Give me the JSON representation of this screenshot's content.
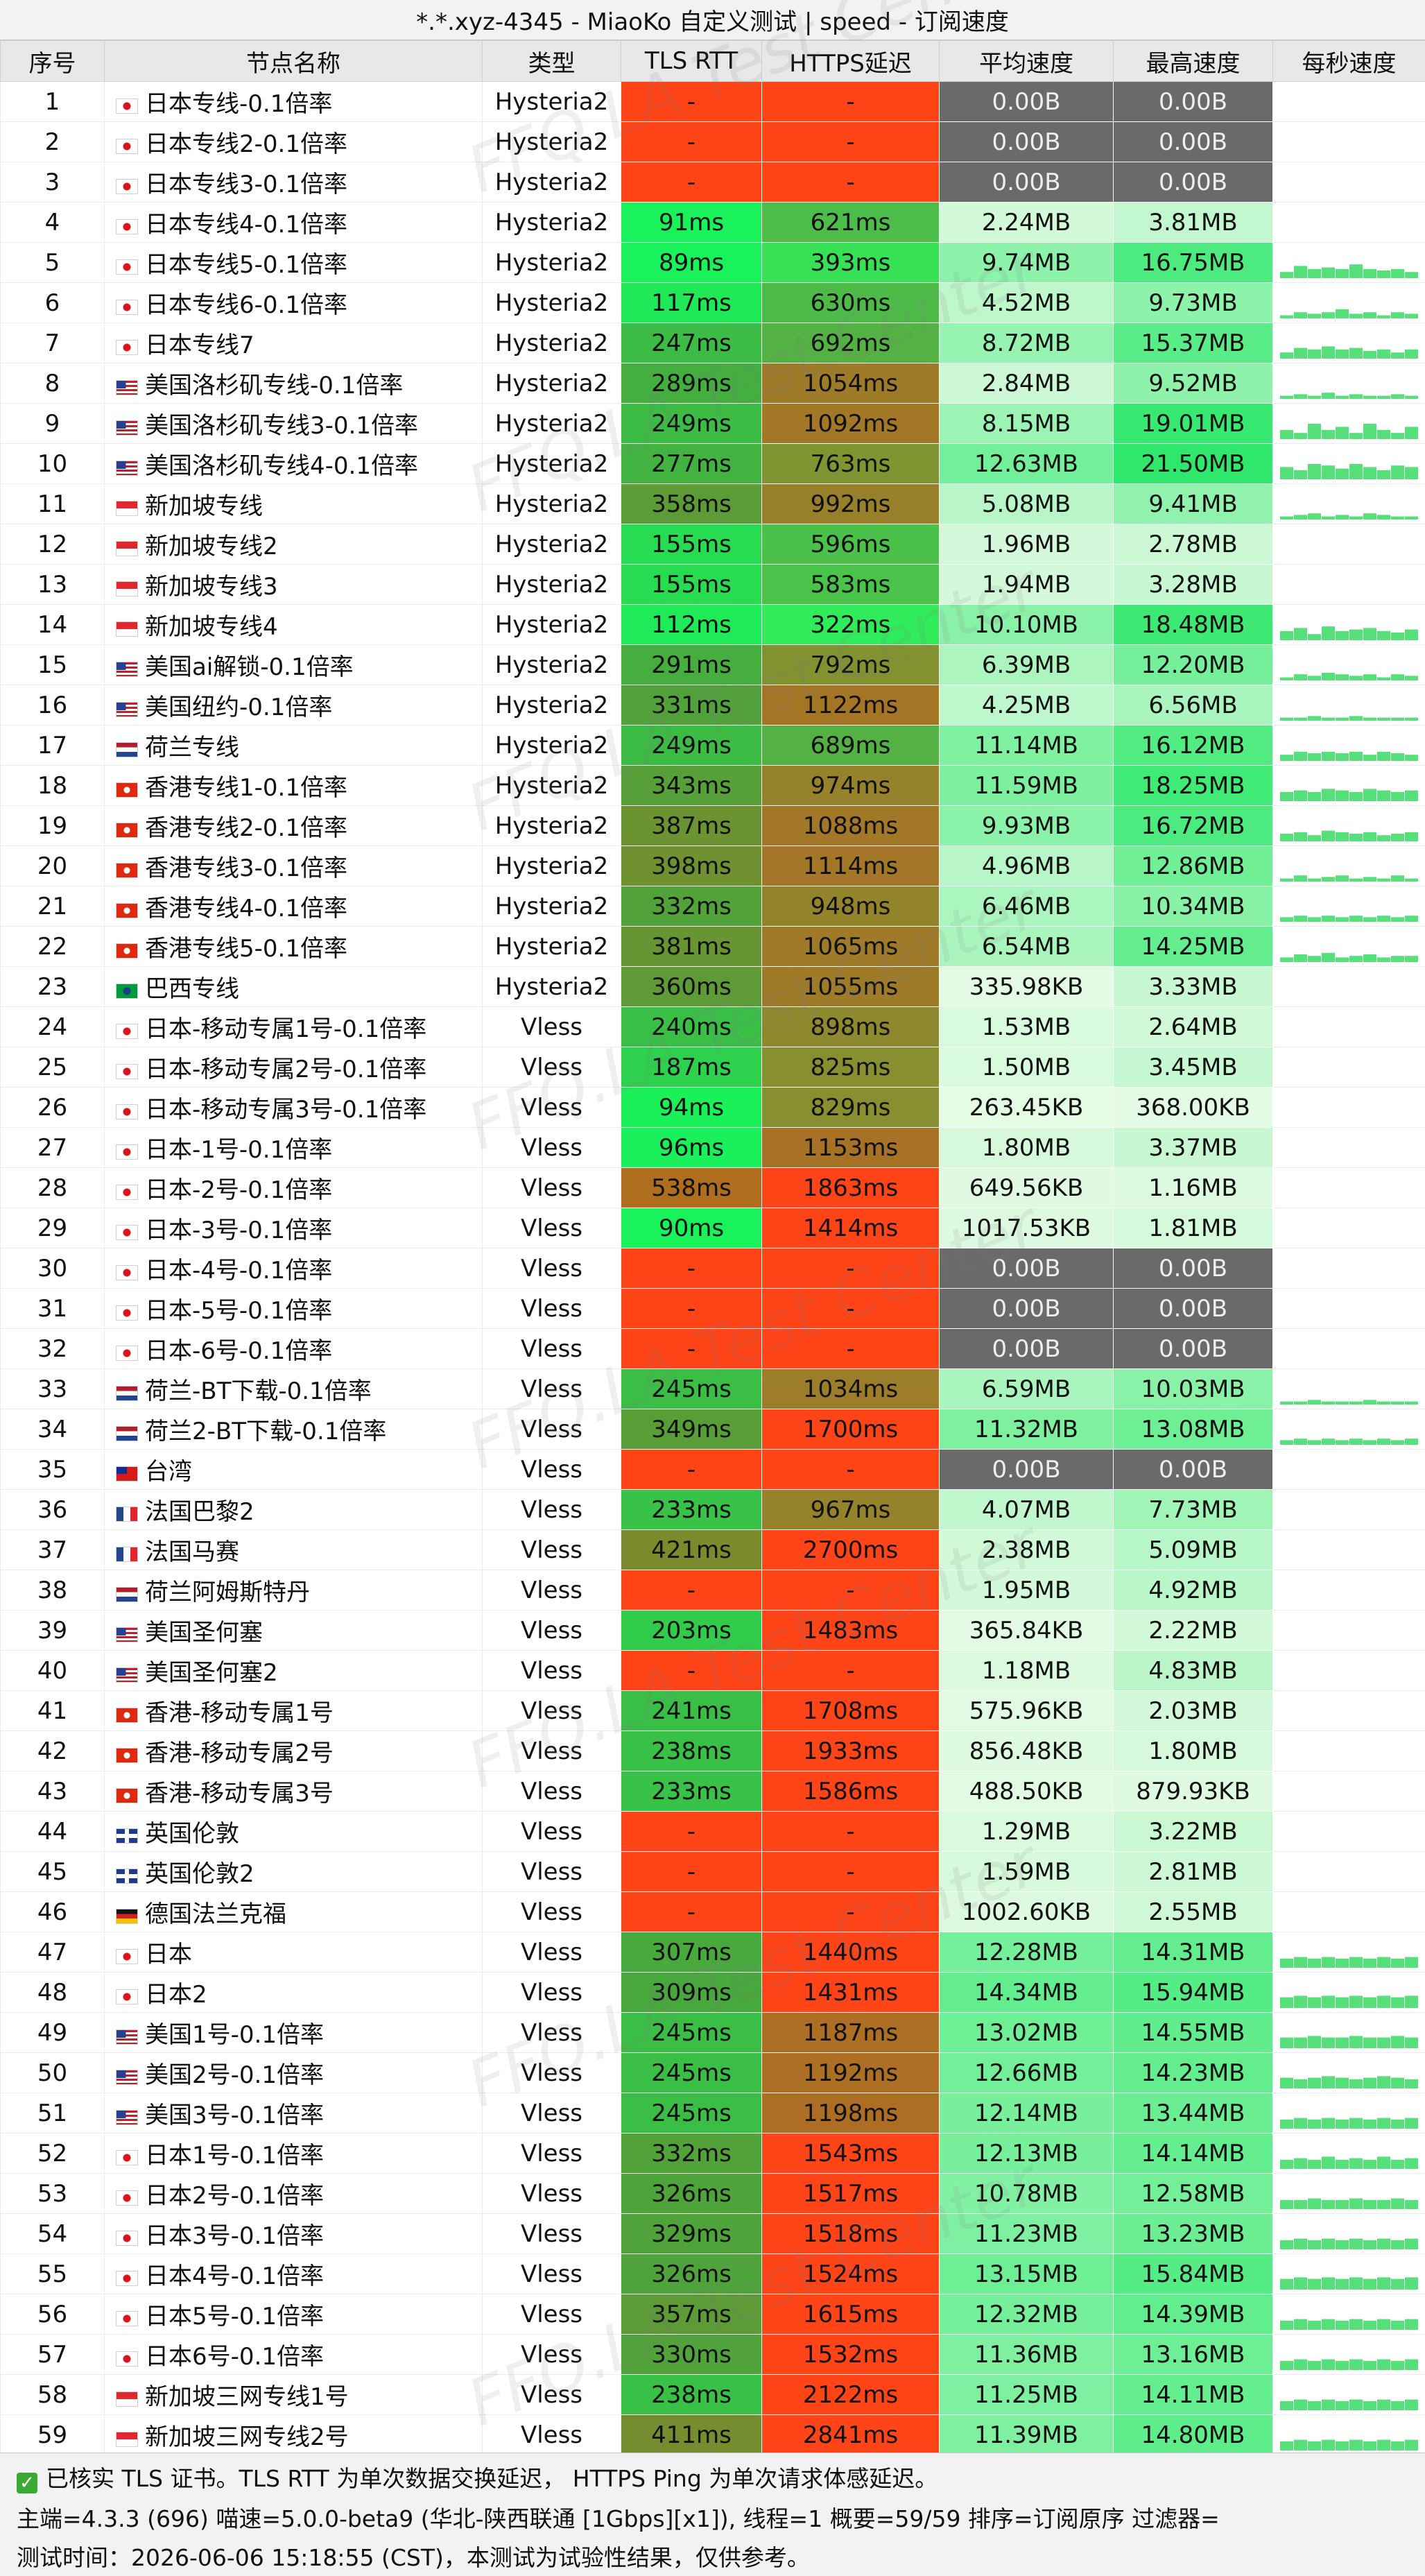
{
  "title": "*.*.xyz-4345 - MiaoKo 自定义测试 | speed - 订阅速度",
  "columns": [
    "序号",
    "节点名称",
    "类型",
    "TLS RTT",
    "HTTPS延迟",
    "平均速度",
    "最高速度",
    "每秒速度"
  ],
  "watermark_text": "FFQ.LA Test Center",
  "rows": [
    {
      "id": "1",
      "flag": "jp",
      "name": "日本专线-0.1倍率",
      "type": "Hysteria2",
      "tls": "-",
      "https": "-",
      "avg": "0.00B",
      "max": "0.00B",
      "spark": []
    },
    {
      "id": "2",
      "flag": "jp",
      "name": "日本专线2-0.1倍率",
      "type": "Hysteria2",
      "tls": "-",
      "https": "-",
      "avg": "0.00B",
      "max": "0.00B",
      "spark": []
    },
    {
      "id": "3",
      "flag": "jp",
      "name": "日本专线3-0.1倍率",
      "type": "Hysteria2",
      "tls": "-",
      "https": "-",
      "avg": "0.00B",
      "max": "0.00B",
      "spark": []
    },
    {
      "id": "4",
      "flag": "jp",
      "name": "日本专线4-0.1倍率",
      "type": "Hysteria2",
      "tls": "91ms",
      "https": "621ms",
      "avg": "2.24MB",
      "max": "3.81MB",
      "spark": []
    },
    {
      "id": "5",
      "flag": "jp",
      "name": "日本专线5-0.1倍率",
      "type": "Hysteria2",
      "tls": "89ms",
      "https": "393ms",
      "avg": "9.74MB",
      "max": "16.75MB",
      "spark": [
        0.2,
        0.4,
        0.3,
        0.35,
        0.3,
        0.45,
        0.3,
        0.25,
        0.3,
        0.2
      ]
    },
    {
      "id": "6",
      "flag": "jp",
      "name": "日本专线6-0.1倍率",
      "type": "Hysteria2",
      "tls": "117ms",
      "https": "630ms",
      "avg": "4.52MB",
      "max": "9.73MB",
      "spark": [
        0.1,
        0.2,
        0.15,
        0.2,
        0.3,
        0.15,
        0.2,
        0.1,
        0.2,
        0.15
      ]
    },
    {
      "id": "7",
      "flag": "jp",
      "name": "日本专线7",
      "type": "Hysteria2",
      "tls": "247ms",
      "https": "692ms",
      "avg": "8.72MB",
      "max": "15.37MB",
      "spark": [
        0.2,
        0.35,
        0.3,
        0.4,
        0.3,
        0.35,
        0.25,
        0.3,
        0.2,
        0.3
      ]
    },
    {
      "id": "8",
      "flag": "us",
      "name": "美国洛杉矶专线-0.1倍率",
      "type": "Hysteria2",
      "tls": "289ms",
      "https": "1054ms",
      "avg": "2.84MB",
      "max": "9.52MB",
      "spark": [
        0.1,
        0.15,
        0.1,
        0.2,
        0.1,
        0.15,
        0.1,
        0.1,
        0.15,
        0.1
      ]
    },
    {
      "id": "9",
      "flag": "us",
      "name": "美国洛杉矶专线3-0.1倍率",
      "type": "Hysteria2",
      "tls": "249ms",
      "https": "1092ms",
      "avg": "8.15MB",
      "max": "19.01MB",
      "spark": [
        0.3,
        0.2,
        0.5,
        0.3,
        0.4,
        0.2,
        0.5,
        0.3,
        0.2,
        0.4
      ]
    },
    {
      "id": "10",
      "flag": "us",
      "name": "美国洛杉矶专线4-0.1倍率",
      "type": "Hysteria2",
      "tls": "277ms",
      "https": "763ms",
      "avg": "12.63MB",
      "max": "21.50MB",
      "spark": [
        0.4,
        0.3,
        0.5,
        0.45,
        0.35,
        0.5,
        0.4,
        0.3,
        0.45,
        0.4
      ]
    },
    {
      "id": "11",
      "flag": "sg",
      "name": "新加坡专线",
      "type": "Hysteria2",
      "tls": "358ms",
      "https": "992ms",
      "avg": "5.08MB",
      "max": "9.41MB",
      "spark": [
        0.1,
        0.15,
        0.2,
        0.1,
        0.15,
        0.1,
        0.2,
        0.15,
        0.1,
        0.1
      ]
    },
    {
      "id": "12",
      "flag": "sg",
      "name": "新加坡专线2",
      "type": "Hysteria2",
      "tls": "155ms",
      "https": "596ms",
      "avg": "1.96MB",
      "max": "2.78MB",
      "spark": []
    },
    {
      "id": "13",
      "flag": "sg",
      "name": "新加坡专线3",
      "type": "Hysteria2",
      "tls": "155ms",
      "https": "583ms",
      "avg": "1.94MB",
      "max": "3.28MB",
      "spark": []
    },
    {
      "id": "14",
      "flag": "sg",
      "name": "新加坡专线4",
      "type": "Hysteria2",
      "tls": "112ms",
      "https": "322ms",
      "avg": "10.10MB",
      "max": "18.48MB",
      "spark": [
        0.3,
        0.4,
        0.2,
        0.45,
        0.3,
        0.35,
        0.4,
        0.3,
        0.25,
        0.35
      ]
    },
    {
      "id": "15",
      "flag": "us",
      "name": "美国ai解锁-0.1倍率",
      "type": "Hysteria2",
      "tls": "291ms",
      "https": "792ms",
      "avg": "6.39MB",
      "max": "12.20MB",
      "spark": [
        0.1,
        0.2,
        0.15,
        0.25,
        0.2,
        0.15,
        0.2,
        0.1,
        0.2,
        0.15
      ]
    },
    {
      "id": "16",
      "flag": "us",
      "name": "美国纽约-0.1倍率",
      "type": "Hysteria2",
      "tls": "331ms",
      "https": "1122ms",
      "avg": "4.25MB",
      "max": "6.56MB",
      "spark": [
        0.1,
        0.1,
        0.15,
        0.1,
        0.1,
        0.15,
        0.1,
        0.1,
        0.1,
        0.1
      ]
    },
    {
      "id": "17",
      "flag": "nl",
      "name": "荷兰专线",
      "type": "Hysteria2",
      "tls": "249ms",
      "https": "689ms",
      "avg": "11.14MB",
      "max": "16.12MB",
      "spark": [
        0.2,
        0.3,
        0.25,
        0.3,
        0.25,
        0.3,
        0.2,
        0.3,
        0.25,
        0.2
      ]
    },
    {
      "id": "18",
      "flag": "hk",
      "name": "香港专线1-0.1倍率",
      "type": "Hysteria2",
      "tls": "343ms",
      "https": "974ms",
      "avg": "11.59MB",
      "max": "18.25MB",
      "spark": [
        0.3,
        0.35,
        0.3,
        0.4,
        0.35,
        0.3,
        0.4,
        0.35,
        0.3,
        0.35
      ]
    },
    {
      "id": "19",
      "flag": "hk",
      "name": "香港专线2-0.1倍率",
      "type": "Hysteria2",
      "tls": "387ms",
      "https": "1088ms",
      "avg": "9.93MB",
      "max": "16.72MB",
      "spark": [
        0.25,
        0.3,
        0.2,
        0.35,
        0.3,
        0.25,
        0.3,
        0.2,
        0.25,
        0.3
      ]
    },
    {
      "id": "20",
      "flag": "hk",
      "name": "香港专线3-0.1倍率",
      "type": "Hysteria2",
      "tls": "398ms",
      "https": "1114ms",
      "avg": "4.96MB",
      "max": "12.86MB",
      "spark": [
        0.1,
        0.2,
        0.1,
        0.15,
        0.2,
        0.1,
        0.15,
        0.1,
        0.2,
        0.1
      ]
    },
    {
      "id": "21",
      "flag": "hk",
      "name": "香港专线4-0.1倍率",
      "type": "Hysteria2",
      "tls": "332ms",
      "https": "948ms",
      "avg": "6.46MB",
      "max": "10.34MB",
      "spark": [
        0.15,
        0.2,
        0.15,
        0.2,
        0.15,
        0.2,
        0.15,
        0.2,
        0.15,
        0.2
      ]
    },
    {
      "id": "22",
      "flag": "hk",
      "name": "香港专线5-0.1倍率",
      "type": "Hysteria2",
      "tls": "381ms",
      "https": "1065ms",
      "avg": "6.54MB",
      "max": "14.25MB",
      "spark": [
        0.15,
        0.25,
        0.2,
        0.3,
        0.15,
        0.2,
        0.25,
        0.15,
        0.2,
        0.2
      ]
    },
    {
      "id": "23",
      "flag": "br",
      "name": "巴西专线",
      "type": "Hysteria2",
      "tls": "360ms",
      "https": "1055ms",
      "avg": "335.98KB",
      "max": "3.33MB",
      "spark": []
    },
    {
      "id": "24",
      "flag": "jp",
      "name": "日本-移动专属1号-0.1倍率",
      "type": "Vless",
      "tls": "240ms",
      "https": "898ms",
      "avg": "1.53MB",
      "max": "2.64MB",
      "spark": []
    },
    {
      "id": "25",
      "flag": "jp",
      "name": "日本-移动专属2号-0.1倍率",
      "type": "Vless",
      "tls": "187ms",
      "https": "825ms",
      "avg": "1.50MB",
      "max": "3.45MB",
      "spark": []
    },
    {
      "id": "26",
      "flag": "jp",
      "name": "日本-移动专属3号-0.1倍率",
      "type": "Vless",
      "tls": "94ms",
      "https": "829ms",
      "avg": "263.45KB",
      "max": "368.00KB",
      "spark": []
    },
    {
      "id": "27",
      "flag": "jp",
      "name": "日本-1号-0.1倍率",
      "type": "Vless",
      "tls": "96ms",
      "https": "1153ms",
      "avg": "1.80MB",
      "max": "3.37MB",
      "spark": []
    },
    {
      "id": "28",
      "flag": "jp",
      "name": "日本-2号-0.1倍率",
      "type": "Vless",
      "tls": "538ms",
      "https": "1863ms",
      "avg": "649.56KB",
      "max": "1.16MB",
      "spark": []
    },
    {
      "id": "29",
      "flag": "jp",
      "name": "日本-3号-0.1倍率",
      "type": "Vless",
      "tls": "90ms",
      "https": "1414ms",
      "avg": "1017.53KB",
      "max": "1.81MB",
      "spark": []
    },
    {
      "id": "30",
      "flag": "jp",
      "name": "日本-4号-0.1倍率",
      "type": "Vless",
      "tls": "-",
      "https": "-",
      "avg": "0.00B",
      "max": "0.00B",
      "spark": []
    },
    {
      "id": "31",
      "flag": "jp",
      "name": "日本-5号-0.1倍率",
      "type": "Vless",
      "tls": "-",
      "https": "-",
      "avg": "0.00B",
      "max": "0.00B",
      "spark": []
    },
    {
      "id": "32",
      "flag": "jp",
      "name": "日本-6号-0.1倍率",
      "type": "Vless",
      "tls": "-",
      "https": "-",
      "avg": "0.00B",
      "max": "0.00B",
      "spark": []
    },
    {
      "id": "33",
      "flag": "nl",
      "name": "荷兰-BT下载-0.1倍率",
      "type": "Vless",
      "tls": "245ms",
      "https": "1034ms",
      "avg": "6.59MB",
      "max": "10.03MB",
      "spark": [
        0.1,
        0.1,
        0.15,
        0.1,
        0.1,
        0.1,
        0.15,
        0.1,
        0.1,
        0.1
      ]
    },
    {
      "id": "34",
      "flag": "nl",
      "name": "荷兰2-BT下载-0.1倍率",
      "type": "Vless",
      "tls": "349ms",
      "https": "1700ms",
      "avg": "11.32MB",
      "max": "13.08MB",
      "spark": [
        0.15,
        0.2,
        0.15,
        0.2,
        0.15,
        0.2,
        0.15,
        0.2,
        0.15,
        0.2
      ]
    },
    {
      "id": "35",
      "flag": "tw",
      "name": "台湾",
      "type": "Vless",
      "tls": "-",
      "https": "-",
      "avg": "0.00B",
      "max": "0.00B",
      "spark": []
    },
    {
      "id": "36",
      "flag": "fr",
      "name": "法国巴黎2",
      "type": "Vless",
      "tls": "233ms",
      "https": "967ms",
      "avg": "4.07MB",
      "max": "7.73MB",
      "spark": []
    },
    {
      "id": "37",
      "flag": "fr",
      "name": "法国马赛",
      "type": "Vless",
      "tls": "421ms",
      "https": "2700ms",
      "avg": "2.38MB",
      "max": "5.09MB",
      "spark": []
    },
    {
      "id": "38",
      "flag": "nl",
      "name": "荷兰阿姆斯特丹",
      "type": "Vless",
      "tls": "-",
      "https": "-",
      "avg": "1.95MB",
      "max": "4.92MB",
      "spark": []
    },
    {
      "id": "39",
      "flag": "us",
      "name": "美国圣何塞",
      "type": "Vless",
      "tls": "203ms",
      "https": "1483ms",
      "avg": "365.84KB",
      "max": "2.22MB",
      "spark": []
    },
    {
      "id": "40",
      "flag": "us",
      "name": "美国圣何塞2",
      "type": "Vless",
      "tls": "-",
      "https": "-",
      "avg": "1.18MB",
      "max": "4.83MB",
      "spark": []
    },
    {
      "id": "41",
      "flag": "hk",
      "name": "香港-移动专属1号",
      "type": "Vless",
      "tls": "241ms",
      "https": "1708ms",
      "avg": "575.96KB",
      "max": "2.03MB",
      "spark": []
    },
    {
      "id": "42",
      "flag": "hk",
      "name": "香港-移动专属2号",
      "type": "Vless",
      "tls": "238ms",
      "https": "1933ms",
      "avg": "856.48KB",
      "max": "1.80MB",
      "spark": []
    },
    {
      "id": "43",
      "flag": "hk",
      "name": "香港-移动专属3号",
      "type": "Vless",
      "tls": "233ms",
      "https": "1586ms",
      "avg": "488.50KB",
      "max": "879.93KB",
      "spark": []
    },
    {
      "id": "44",
      "flag": "gb",
      "name": "英国伦敦",
      "type": "Vless",
      "tls": "-",
      "https": "-",
      "avg": "1.29MB",
      "max": "3.22MB",
      "spark": []
    },
    {
      "id": "45",
      "flag": "gb",
      "name": "英国伦敦2",
      "type": "Vless",
      "tls": "-",
      "https": "-",
      "avg": "1.59MB",
      "max": "2.81MB",
      "spark": []
    },
    {
      "id": "46",
      "flag": "de",
      "name": "德国法兰克福",
      "type": "Vless",
      "tls": "-",
      "https": "-",
      "avg": "1002.60KB",
      "max": "2.55MB",
      "spark": []
    },
    {
      "id": "47",
      "flag": "jp",
      "name": "日本",
      "type": "Vless",
      "tls": "307ms",
      "https": "1440ms",
      "avg": "12.28MB",
      "max": "14.31MB",
      "spark": [
        0.3,
        0.35,
        0.3,
        0.35,
        0.3,
        0.35,
        0.3,
        0.35,
        0.3,
        0.35
      ]
    },
    {
      "id": "48",
      "flag": "jp",
      "name": "日本2",
      "type": "Vless",
      "tls": "309ms",
      "https": "1431ms",
      "avg": "14.34MB",
      "max": "15.94MB",
      "spark": [
        0.35,
        0.4,
        0.35,
        0.4,
        0.35,
        0.4,
        0.35,
        0.4,
        0.35,
        0.4
      ]
    },
    {
      "id": "49",
      "flag": "us",
      "name": "美国1号-0.1倍率",
      "type": "Vless",
      "tls": "245ms",
      "https": "1187ms",
      "avg": "13.02MB",
      "max": "14.55MB",
      "spark": [
        0.35,
        0.35,
        0.4,
        0.35,
        0.35,
        0.4,
        0.35,
        0.35,
        0.4,
        0.35
      ]
    },
    {
      "id": "50",
      "flag": "us",
      "name": "美国2号-0.1倍率",
      "type": "Vless",
      "tls": "245ms",
      "https": "1192ms",
      "avg": "12.66MB",
      "max": "14.23MB",
      "spark": [
        0.35,
        0.3,
        0.35,
        0.4,
        0.35,
        0.3,
        0.35,
        0.4,
        0.35,
        0.3
      ]
    },
    {
      "id": "51",
      "flag": "us",
      "name": "美国3号-0.1倍率",
      "type": "Vless",
      "tls": "245ms",
      "https": "1198ms",
      "avg": "12.14MB",
      "max": "13.44MB",
      "spark": [
        0.3,
        0.35,
        0.3,
        0.35,
        0.3,
        0.35,
        0.3,
        0.35,
        0.3,
        0.35
      ]
    },
    {
      "id": "52",
      "flag": "jp",
      "name": "日本1号-0.1倍率",
      "type": "Vless",
      "tls": "332ms",
      "https": "1543ms",
      "avg": "12.13MB",
      "max": "14.14MB",
      "spark": [
        0.3,
        0.35,
        0.3,
        0.4,
        0.3,
        0.35,
        0.3,
        0.4,
        0.3,
        0.35
      ]
    },
    {
      "id": "53",
      "flag": "jp",
      "name": "日本2号-0.1倍率",
      "type": "Vless",
      "tls": "326ms",
      "https": "1517ms",
      "avg": "10.78MB",
      "max": "12.58MB",
      "spark": [
        0.3,
        0.3,
        0.35,
        0.3,
        0.3,
        0.35,
        0.3,
        0.3,
        0.35,
        0.3
      ]
    },
    {
      "id": "54",
      "flag": "jp",
      "name": "日本3号-0.1倍率",
      "type": "Vless",
      "tls": "329ms",
      "https": "1518ms",
      "avg": "11.23MB",
      "max": "13.23MB",
      "spark": [
        0.3,
        0.35,
        0.3,
        0.35,
        0.3,
        0.35,
        0.3,
        0.35,
        0.3,
        0.35
      ]
    },
    {
      "id": "55",
      "flag": "jp",
      "name": "日本4号-0.1倍率",
      "type": "Vless",
      "tls": "326ms",
      "https": "1524ms",
      "avg": "13.15MB",
      "max": "15.84MB",
      "spark": [
        0.35,
        0.4,
        0.35,
        0.4,
        0.35,
        0.4,
        0.35,
        0.4,
        0.35,
        0.4
      ]
    },
    {
      "id": "56",
      "flag": "jp",
      "name": "日本5号-0.1倍率",
      "type": "Vless",
      "tls": "357ms",
      "https": "1615ms",
      "avg": "12.32MB",
      "max": "14.39MB",
      "spark": [
        0.3,
        0.35,
        0.3,
        0.35,
        0.3,
        0.35,
        0.3,
        0.35,
        0.3,
        0.35
      ]
    },
    {
      "id": "57",
      "flag": "jp",
      "name": "日本6号-0.1倍率",
      "type": "Vless",
      "tls": "330ms",
      "https": "1532ms",
      "avg": "11.36MB",
      "max": "13.16MB",
      "spark": [
        0.3,
        0.35,
        0.3,
        0.35,
        0.3,
        0.35,
        0.3,
        0.35,
        0.3,
        0.35
      ]
    },
    {
      "id": "58",
      "flag": "sg",
      "name": "新加坡三网专线1号",
      "type": "Vless",
      "tls": "238ms",
      "https": "2122ms",
      "avg": "11.25MB",
      "max": "14.11MB",
      "spark": [
        0.3,
        0.35,
        0.3,
        0.35,
        0.3,
        0.35,
        0.3,
        0.35,
        0.3,
        0.35
      ]
    },
    {
      "id": "59",
      "flag": "sg",
      "name": "新加坡三网专线2号",
      "type": "Vless",
      "tls": "411ms",
      "https": "2841ms",
      "avg": "11.39MB",
      "max": "14.80MB",
      "spark": [
        0.3,
        0.35,
        0.3,
        0.35,
        0.3,
        0.35,
        0.3,
        0.35,
        0.3,
        0.35
      ]
    }
  ],
  "footer": {
    "line1": "已核实 TLS 证书。TLS RTT 为单次数据交换延迟， HTTPS Ping 为单次请求体感延迟。",
    "line2": "主端=4.3.3 (696) 喵速=5.0.0-beta9 (华北-陕西联通 [1Gbps][x1]), 线程=1 概要=59/59 排序=订阅原序 过滤器=",
    "line3": "测试时间：2026-06-06 15:18:55 (CST)，本测试为试验性结果，仅供参考。"
  },
  "colors": {
    "fail_red": "#ff4418",
    "zero_gray": "#6a6a6a",
    "header_bg": "#e8e8e8",
    "check_green": "#3aaa35"
  }
}
